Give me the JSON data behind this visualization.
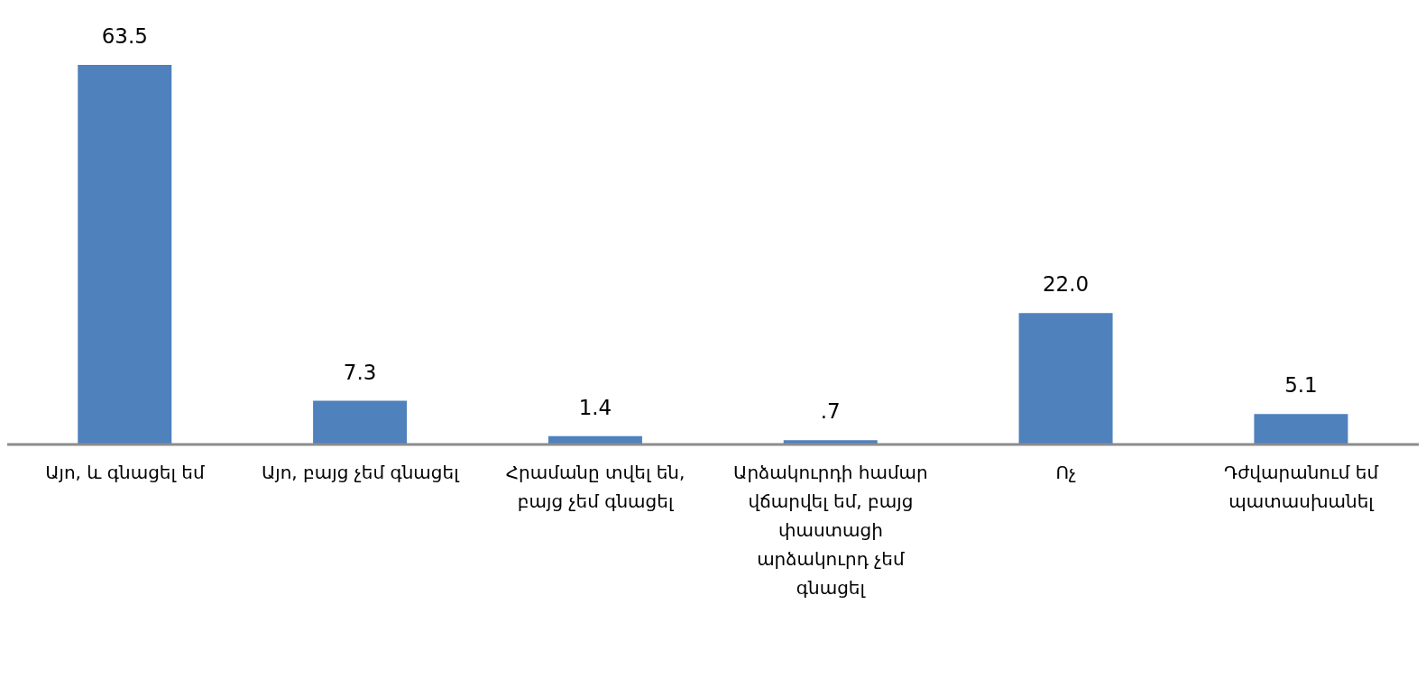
{
  "chart_data": {
    "type": "bar",
    "categories": [
      "Այո, և գնացել եմ",
      "Այո, բայց չեմ գնացել",
      "Հրամանը տվել են, բայց չեմ գնացել",
      "Արձակուրդի համար վճարվել եմ, բայց փաստացի արձակուրդ չեմ գնացել",
      "Ոչ",
      "Դժվարանում եմ պատասխանել"
    ],
    "values": [
      63.5,
      7.3,
      1.4,
      0.7,
      22.0,
      5.1
    ],
    "value_labels": [
      "63.5",
      "7.3",
      "1.4",
      ".7",
      "22.0",
      "5.1"
    ],
    "color": "#4f81bd",
    "tick_labels": "x"
  }
}
